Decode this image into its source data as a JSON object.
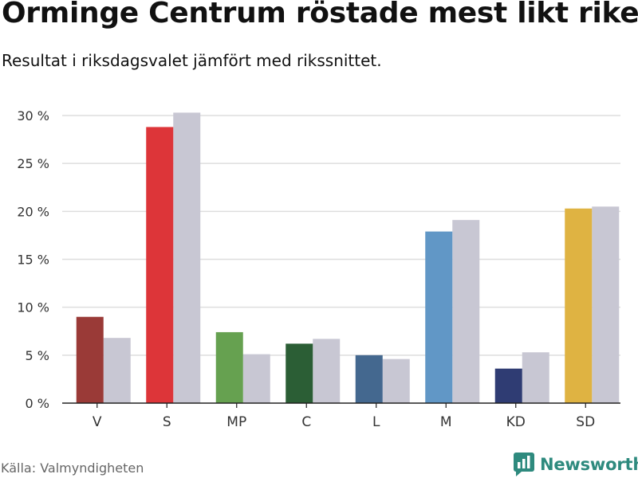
{
  "header": {
    "title": "Orminge Centrum röstade mest likt riket",
    "subtitle": "Resultat i riksdagsvalet jämfört med rikssnittet."
  },
  "footer": {
    "source": "Källa: Valmyndigheten",
    "brand": "Newsworthy",
    "brand_icon": "newsworthy-logo-icon",
    "brand_color": "#2e8a7e"
  },
  "chart_data": {
    "type": "bar",
    "categories": [
      "V",
      "S",
      "MP",
      "C",
      "L",
      "M",
      "KD",
      "SD"
    ],
    "series": [
      {
        "values": [
          9.0,
          28.8,
          7.4,
          6.2,
          5.0,
          17.9,
          3.6,
          20.3
        ],
        "colors": [
          "#9a3a37",
          "#dd3539",
          "#66a150",
          "#2b5e35",
          "#44688f",
          "#6197c6",
          "#2f3c73",
          "#dfb342"
        ]
      },
      {
        "values": [
          6.8,
          30.3,
          5.1,
          6.7,
          4.6,
          19.1,
          5.3,
          20.5
        ],
        "color": "#c8c7d3"
      }
    ],
    "yticks": [
      0,
      5,
      10,
      15,
      20,
      25,
      30
    ],
    "ytick_labels": [
      "0 %",
      "5 %",
      "10 %",
      "15 %",
      "20 %",
      "25 %",
      "30 %"
    ],
    "ylim": [
      0,
      30
    ],
    "xlabel": "",
    "ylabel": "",
    "grid": true
  }
}
